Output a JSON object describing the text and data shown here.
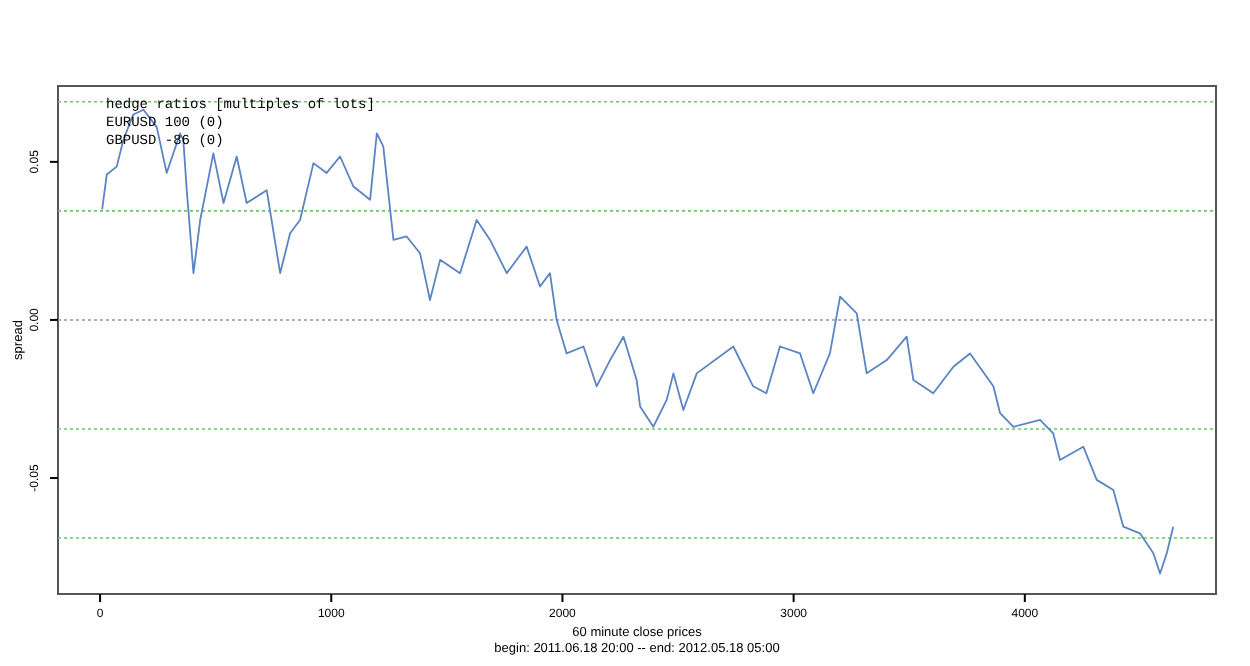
{
  "chart_data": {
    "type": "line",
    "xlabel": "60 minute close prices\nbegin: 2011.06.18 20:00 -- end: 2012.05.18 05:00",
    "ylabel": "spread",
    "annotations": [
      "hedge ratios [multiples of lots]",
      "EURUSD 100 (0)",
      "GBPUSD -86 (0)"
    ],
    "xlim": [
      -182,
      4827
    ],
    "ylim": [
      -0.0867,
      0.074
    ],
    "xticks": [
      0,
      1000,
      2000,
      3000,
      4000
    ],
    "yticks": [
      {
        "value": -0.05,
        "label": "-0.05"
      },
      {
        "value": 0,
        "label": "0.00"
      },
      {
        "value": 0.05,
        "label": "0.05"
      }
    ],
    "ref_lines": [
      {
        "axis": "y",
        "value": 0.069,
        "color": "#66cc66",
        "line_style": "dotted"
      },
      {
        "axis": "y",
        "value": 0.0345,
        "color": "#66cc66",
        "line_style": "dotted"
      },
      {
        "axis": "y",
        "value": 0,
        "color": "#8899bb",
        "line_style": "dotted"
      },
      {
        "axis": "y",
        "value": -0.0345,
        "color": "#66cc66",
        "line_style": "dotted"
      },
      {
        "axis": "y",
        "value": -0.069,
        "color": "#66cc66",
        "line_style": "dotted"
      }
    ],
    "series": [
      {
        "color": "#5b84c4",
        "x": [
          9,
          29,
          72,
          101,
          144,
          188,
          245,
          288,
          346,
          360,
          375,
          404,
          433,
          490,
          534,
          591,
          634,
          721,
          779,
          822,
          865,
          923,
          980,
          1038,
          1096,
          1168,
          1197,
          1225,
          1269,
          1326,
          1384,
          1427,
          1471,
          1557,
          1629,
          1687,
          1759,
          1845,
          1903,
          1946,
          1975,
          2018,
          2091,
          2148,
          2206,
          2264,
          2321,
          2336,
          2393,
          2451,
          2480,
          2523,
          2581,
          2739,
          2825,
          2882,
          2941,
          3028,
          3085,
          3157,
          3201,
          3273,
          3316,
          3403,
          3489,
          3518,
          3604,
          3691,
          3763,
          3864,
          3893,
          3951,
          4066,
          4123,
          4152,
          4253,
          4311,
          4383,
          4426,
          4498,
          4556,
          4585,
          4614,
          4642
        ],
        "values": [
          0.035,
          0.046,
          0.0485,
          0.057,
          0.065,
          0.0665,
          0.061,
          0.0465,
          0.059,
          0.057,
          0.041,
          0.0148,
          0.0316,
          0.0527,
          0.037,
          0.0517,
          0.037,
          0.041,
          0.0148,
          0.0274,
          0.0316,
          0.0496,
          0.0465,
          0.0517,
          0.0422,
          0.038,
          0.059,
          0.0549,
          0.0253,
          0.0264,
          0.0211,
          0.0063,
          0.019,
          0.0148,
          0.0316,
          0.0253,
          0.0148,
          0.0232,
          0.0106,
          0.0148,
          0,
          -0.0106,
          -0.0084,
          -0.021,
          -0.0127,
          -0.0053,
          -0.019,
          -0.0274,
          -0.0338,
          -0.0253,
          -0.0169,
          -0.0285,
          -0.0169,
          -0.0084,
          -0.021,
          -0.0232,
          -0.0084,
          -0.0106,
          -0.0232,
          -0.0106,
          0.0074,
          0.0021,
          -0.0169,
          -0.0127,
          -0.0053,
          -0.019,
          -0.0232,
          -0.0148,
          -0.0106,
          -0.021,
          -0.0295,
          -0.0338,
          -0.0316,
          -0.0359,
          -0.0443,
          -0.0401,
          -0.0506,
          -0.0538,
          -0.0654,
          -0.0675,
          -0.0738,
          -0.0802,
          -0.0738,
          -0.0654
        ]
      }
    ]
  }
}
